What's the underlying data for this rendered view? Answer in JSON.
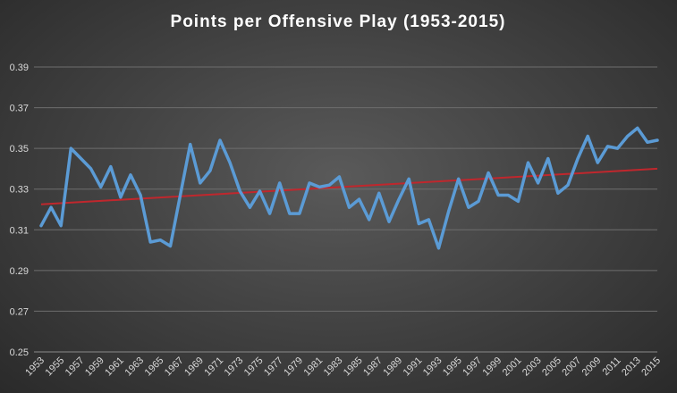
{
  "chart_data": {
    "type": "line",
    "title": "Points per Offensive Play (1953-2015)",
    "xlabel": "",
    "ylabel": "",
    "ylim": [
      0.25,
      0.39
    ],
    "yticks": [
      "0.25",
      "0.27",
      "0.29",
      "0.31",
      "0.33",
      "0.35",
      "0.37",
      "0.39"
    ],
    "grid": true,
    "legend": "none",
    "x": [
      1953,
      1954,
      1955,
      1956,
      1957,
      1958,
      1959,
      1960,
      1961,
      1962,
      1963,
      1964,
      1965,
      1966,
      1967,
      1968,
      1969,
      1970,
      1971,
      1972,
      1973,
      1974,
      1975,
      1976,
      1977,
      1978,
      1979,
      1980,
      1981,
      1982,
      1983,
      1984,
      1985,
      1986,
      1987,
      1988,
      1989,
      1990,
      1991,
      1992,
      1993,
      1994,
      1995,
      1996,
      1997,
      1998,
      1999,
      2000,
      2001,
      2002,
      2003,
      2004,
      2005,
      2006,
      2007,
      2008,
      2009,
      2010,
      2011,
      2012,
      2013,
      2014,
      2015
    ],
    "xtick_labels": [
      "1953",
      "1955",
      "1957",
      "1959",
      "1961",
      "1963",
      "1965",
      "1967",
      "1969",
      "1971",
      "1973",
      "1975",
      "1977",
      "1979",
      "1981",
      "1983",
      "1985",
      "1987",
      "1989",
      "1991",
      "1993",
      "1995",
      "1997",
      "1999",
      "2001",
      "2003",
      "2005",
      "2007",
      "2009",
      "2011",
      "2013",
      "2015"
    ],
    "series": [
      {
        "color": "#5b9bd5",
        "values": [
          0.312,
          0.321,
          0.312,
          0.35,
          0.345,
          0.34,
          0.331,
          0.341,
          0.326,
          0.337,
          0.327,
          0.304,
          0.305,
          0.302,
          0.327,
          0.352,
          0.333,
          0.339,
          0.354,
          0.343,
          0.329,
          0.321,
          0.329,
          0.318,
          0.333,
          0.318,
          0.318,
          0.333,
          0.331,
          0.332,
          0.336,
          0.321,
          0.325,
          0.315,
          0.328,
          0.314,
          0.325,
          0.335,
          0.313,
          0.315,
          0.301,
          0.319,
          0.335,
          0.321,
          0.324,
          0.338,
          0.327,
          0.327,
          0.324,
          0.343,
          0.333,
          0.345,
          0.328,
          0.332,
          0.345,
          0.356,
          0.343,
          0.351,
          0.35,
          0.356,
          0.36,
          0.353,
          0.354
        ]
      }
    ],
    "trendline": {
      "color": "#c0272d",
      "start": 0.3225,
      "end": 0.34
    }
  }
}
